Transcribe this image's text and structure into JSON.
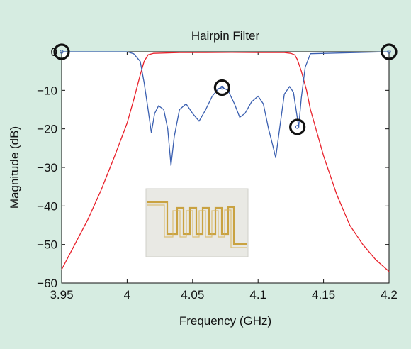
{
  "chart_data": {
    "type": "line",
    "title": "Hairpin Filter",
    "xlabel": "Frequency (GHz)",
    "ylabel": "Magnitude (dB)",
    "xlim": [
      3.95,
      4.2
    ],
    "ylim": [
      -60,
      0
    ],
    "x_ticks": [
      "3.95",
      "4",
      "4.05",
      "4.1",
      "4.15",
      "4.2"
    ],
    "x_tick_values": [
      3.95,
      4.0,
      4.05,
      4.1,
      4.15,
      4.2
    ],
    "y_ticks": [
      "0",
      "−10",
      "−20",
      "−30",
      "−40",
      "−50",
      "−60"
    ],
    "y_tick_values": [
      0,
      -10,
      -20,
      -30,
      -40,
      -50,
      -60
    ],
    "grid": false,
    "series": [
      {
        "color": "#e8202a",
        "x": [
          3.95,
          3.96,
          3.97,
          3.98,
          3.99,
          4.0,
          4.005,
          4.01,
          4.013,
          4.016,
          4.02,
          4.04,
          4.06,
          4.08,
          4.1,
          4.12,
          4.125,
          4.128,
          4.13,
          4.133,
          4.137,
          4.14,
          4.15,
          4.16,
          4.17,
          4.18,
          4.19,
          4.2
        ],
        "y": [
          -56.5,
          -50,
          -43.5,
          -36,
          -27.5,
          -18.5,
          -12.5,
          -6,
          -2.5,
          -0.8,
          -0.4,
          -0.2,
          -0.2,
          -0.15,
          -0.2,
          -0.2,
          -0.4,
          -0.8,
          -2,
          -5,
          -10,
          -15,
          -27,
          -37,
          -45,
          -50,
          -54,
          -57
        ]
      },
      {
        "color": "#3a5fb0",
        "x": [
          3.95,
          4.0,
          4.005,
          4.01,
          4.013,
          4.016,
          4.0185,
          4.021,
          4.024,
          4.028,
          4.031,
          4.0335,
          4.036,
          4.04,
          4.045,
          4.05,
          4.055,
          4.06,
          4.065,
          4.07,
          4.073,
          4.077,
          4.082,
          4.086,
          4.09,
          4.095,
          4.1,
          4.104,
          4.108,
          4.111,
          4.1135,
          4.116,
          4.12,
          4.124,
          4.127,
          4.129,
          4.131,
          4.133,
          4.136,
          4.14,
          4.2
        ],
        "y": [
          0,
          0,
          -0.5,
          -2.5,
          -8,
          -15,
          -21,
          -16,
          -14,
          -15,
          -20,
          -29.5,
          -22,
          -15,
          -13.5,
          -16,
          -18,
          -15,
          -11.5,
          -9.5,
          -9.3,
          -10,
          -13.5,
          -17,
          -16,
          -13,
          -11.5,
          -13.5,
          -20,
          -24,
          -27.5,
          -21,
          -11,
          -9,
          -10.5,
          -15,
          -19.5,
          -12,
          -4,
          -0.5,
          0
        ]
      }
    ],
    "highlight_markers": [
      {
        "x": 3.95,
        "y": 0
      },
      {
        "x": 4.2,
        "y": 0
      },
      {
        "x": 4.0725,
        "y": -9.3
      },
      {
        "x": 4.13,
        "y": -19.5
      }
    ],
    "inset_image": "hairpin-filter-photo",
    "colors": {
      "background": "#d6ece1",
      "plot_area": "#ffffff",
      "marker": "#111111"
    }
  }
}
